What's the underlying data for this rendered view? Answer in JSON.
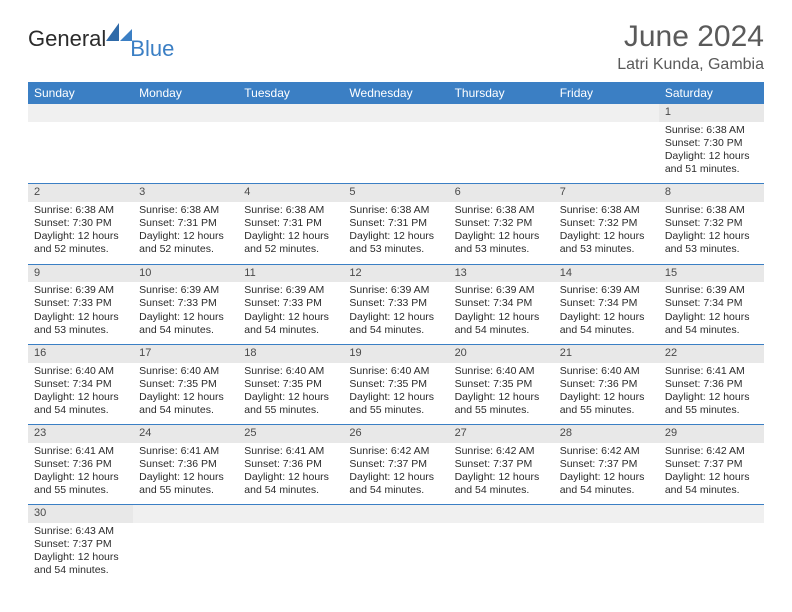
{
  "logo": {
    "general": "General",
    "blue": "Blue"
  },
  "title": "June 2024",
  "location": "Latri Kunda, Gambia",
  "headers": [
    "Sunday",
    "Monday",
    "Tuesday",
    "Wednesday",
    "Thursday",
    "Friday",
    "Saturday"
  ],
  "colors": {
    "header_bg": "#3b7fc4",
    "header_text": "#ffffff",
    "daynum_bg": "#e8e8e8",
    "border": "#3b7fc4",
    "title_color": "#5a5a5a"
  },
  "weeks": [
    [
      null,
      null,
      null,
      null,
      null,
      null,
      {
        "n": "1",
        "sunrise": "6:38 AM",
        "sunset": "7:30 PM",
        "daylight": "12 hours and 51 minutes."
      }
    ],
    [
      {
        "n": "2",
        "sunrise": "6:38 AM",
        "sunset": "7:30 PM",
        "daylight": "12 hours and 52 minutes."
      },
      {
        "n": "3",
        "sunrise": "6:38 AM",
        "sunset": "7:31 PM",
        "daylight": "12 hours and 52 minutes."
      },
      {
        "n": "4",
        "sunrise": "6:38 AM",
        "sunset": "7:31 PM",
        "daylight": "12 hours and 52 minutes."
      },
      {
        "n": "5",
        "sunrise": "6:38 AM",
        "sunset": "7:31 PM",
        "daylight": "12 hours and 53 minutes."
      },
      {
        "n": "6",
        "sunrise": "6:38 AM",
        "sunset": "7:32 PM",
        "daylight": "12 hours and 53 minutes."
      },
      {
        "n": "7",
        "sunrise": "6:38 AM",
        "sunset": "7:32 PM",
        "daylight": "12 hours and 53 minutes."
      },
      {
        "n": "8",
        "sunrise": "6:38 AM",
        "sunset": "7:32 PM",
        "daylight": "12 hours and 53 minutes."
      }
    ],
    [
      {
        "n": "9",
        "sunrise": "6:39 AM",
        "sunset": "7:33 PM",
        "daylight": "12 hours and 53 minutes."
      },
      {
        "n": "10",
        "sunrise": "6:39 AM",
        "sunset": "7:33 PM",
        "daylight": "12 hours and 54 minutes."
      },
      {
        "n": "11",
        "sunrise": "6:39 AM",
        "sunset": "7:33 PM",
        "daylight": "12 hours and 54 minutes."
      },
      {
        "n": "12",
        "sunrise": "6:39 AM",
        "sunset": "7:33 PM",
        "daylight": "12 hours and 54 minutes."
      },
      {
        "n": "13",
        "sunrise": "6:39 AM",
        "sunset": "7:34 PM",
        "daylight": "12 hours and 54 minutes."
      },
      {
        "n": "14",
        "sunrise": "6:39 AM",
        "sunset": "7:34 PM",
        "daylight": "12 hours and 54 minutes."
      },
      {
        "n": "15",
        "sunrise": "6:39 AM",
        "sunset": "7:34 PM",
        "daylight": "12 hours and 54 minutes."
      }
    ],
    [
      {
        "n": "16",
        "sunrise": "6:40 AM",
        "sunset": "7:34 PM",
        "daylight": "12 hours and 54 minutes."
      },
      {
        "n": "17",
        "sunrise": "6:40 AM",
        "sunset": "7:35 PM",
        "daylight": "12 hours and 54 minutes."
      },
      {
        "n": "18",
        "sunrise": "6:40 AM",
        "sunset": "7:35 PM",
        "daylight": "12 hours and 55 minutes."
      },
      {
        "n": "19",
        "sunrise": "6:40 AM",
        "sunset": "7:35 PM",
        "daylight": "12 hours and 55 minutes."
      },
      {
        "n": "20",
        "sunrise": "6:40 AM",
        "sunset": "7:35 PM",
        "daylight": "12 hours and 55 minutes."
      },
      {
        "n": "21",
        "sunrise": "6:40 AM",
        "sunset": "7:36 PM",
        "daylight": "12 hours and 55 minutes."
      },
      {
        "n": "22",
        "sunrise": "6:41 AM",
        "sunset": "7:36 PM",
        "daylight": "12 hours and 55 minutes."
      }
    ],
    [
      {
        "n": "23",
        "sunrise": "6:41 AM",
        "sunset": "7:36 PM",
        "daylight": "12 hours and 55 minutes."
      },
      {
        "n": "24",
        "sunrise": "6:41 AM",
        "sunset": "7:36 PM",
        "daylight": "12 hours and 55 minutes."
      },
      {
        "n": "25",
        "sunrise": "6:41 AM",
        "sunset": "7:36 PM",
        "daylight": "12 hours and 54 minutes."
      },
      {
        "n": "26",
        "sunrise": "6:42 AM",
        "sunset": "7:37 PM",
        "daylight": "12 hours and 54 minutes."
      },
      {
        "n": "27",
        "sunrise": "6:42 AM",
        "sunset": "7:37 PM",
        "daylight": "12 hours and 54 minutes."
      },
      {
        "n": "28",
        "sunrise": "6:42 AM",
        "sunset": "7:37 PM",
        "daylight": "12 hours and 54 minutes."
      },
      {
        "n": "29",
        "sunrise": "6:42 AM",
        "sunset": "7:37 PM",
        "daylight": "12 hours and 54 minutes."
      }
    ],
    [
      {
        "n": "30",
        "sunrise": "6:43 AM",
        "sunset": "7:37 PM",
        "daylight": "12 hours and 54 minutes."
      },
      null,
      null,
      null,
      null,
      null,
      null
    ]
  ],
  "labels": {
    "sunrise": "Sunrise:",
    "sunset": "Sunset:",
    "daylight": "Daylight:"
  }
}
